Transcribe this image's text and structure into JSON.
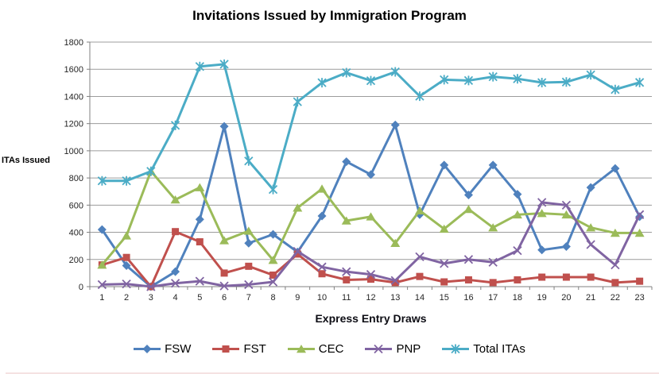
{
  "chart_data": {
    "type": "line",
    "title": "Invitations Issued by Immigration Program",
    "xlabel": "Express Entry Draws",
    "ylabel": "ITAs Issued",
    "categories": [
      "1",
      "2",
      "3",
      "4",
      "5",
      "6",
      "7",
      "8",
      "9",
      "10",
      "11",
      "12",
      "13",
      "14",
      "15",
      "16",
      "17",
      "18",
      "19",
      "20",
      "21",
      "22",
      "23"
    ],
    "ylim": [
      0,
      1800
    ],
    "y_tick_step": 200,
    "grid": true,
    "legend_position": "bottom",
    "series": [
      {
        "name": "FSW",
        "color": "#4F81BD",
        "marker": "diamond",
        "values": [
          420,
          155,
          0,
          110,
          495,
          1180,
          320,
          385,
          255,
          520,
          920,
          825,
          1190,
          530,
          895,
          675,
          895,
          680,
          270,
          295,
          730,
          870,
          515
        ]
      },
      {
        "name": "FST",
        "color": "#C0504D",
        "marker": "square",
        "values": [
          160,
          215,
          0,
          405,
          330,
          100,
          150,
          85,
          240,
          95,
          50,
          55,
          30,
          75,
          35,
          50,
          30,
          50,
          70,
          70,
          70,
          30,
          40
        ]
      },
      {
        "name": "CEC",
        "color": "#9BBB59",
        "marker": "triangle",
        "values": [
          160,
          375,
          850,
          640,
          730,
          340,
          410,
          195,
          580,
          720,
          485,
          515,
          320,
          560,
          425,
          570,
          435,
          530,
          540,
          530,
          435,
          395,
          395
        ]
      },
      {
        "name": "PNP",
        "color": "#8064A2",
        "marker": "x",
        "values": [
          15,
          20,
          0,
          25,
          40,
          5,
          15,
          35,
          260,
          145,
          110,
          90,
          45,
          220,
          170,
          200,
          180,
          265,
          620,
          600,
          310,
          160,
          530
        ]
      },
      {
        "name": "Total ITAs",
        "color": "#4BACC6",
        "marker": "asterisk",
        "values": [
          779,
          779,
          849,
          1187,
          1620,
          1637,
          925,
          715,
          1361,
          1501,
          1575,
          1516,
          1581,
          1402,
          1523,
          1517,
          1545,
          1530,
          1502,
          1506,
          1559,
          1451,
          1503
        ]
      }
    ]
  },
  "colors": {
    "gridline": "#9c9c9c",
    "axis": "#808080",
    "tick_text": "#262626",
    "bottom_strip": "#f5e2e2"
  }
}
